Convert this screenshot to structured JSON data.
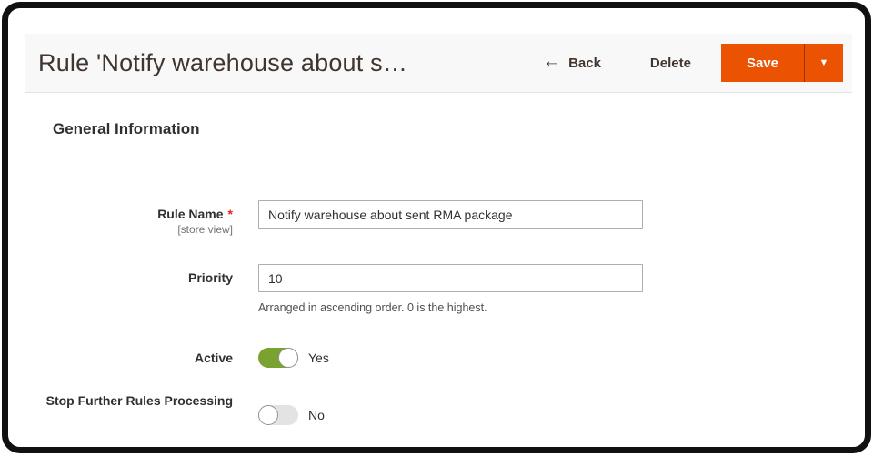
{
  "header": {
    "title": "Rule 'Notify warehouse about s…",
    "back_icon": "←",
    "back_label": "Back",
    "delete_label": "Delete",
    "save_label": "Save",
    "save_dropdown_icon": "▼"
  },
  "section": {
    "title": "General Information"
  },
  "form": {
    "rule_name": {
      "label": "Rule Name",
      "required_marker": "*",
      "scope": "[store view]",
      "value": "Notify warehouse about sent RMA package"
    },
    "priority": {
      "label": "Priority",
      "value": "10",
      "hint": "Arranged in ascending order. 0 is the highest."
    },
    "active": {
      "label": "Active",
      "state": "on",
      "state_label": "Yes"
    },
    "stop_rules": {
      "label": "Stop Further Rules Processing",
      "state": "off",
      "state_label": "No"
    }
  },
  "colors": {
    "accent": "#eb5202",
    "toggle_on": "#79a22e",
    "toggle_off": "#e3e3e3",
    "required": "#e22626",
    "header_bar": "#f8f8f8"
  }
}
